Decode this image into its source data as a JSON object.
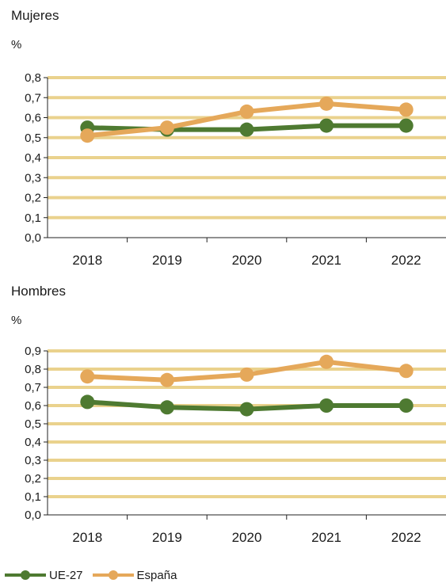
{
  "colors": {
    "ue27": "#4e7a31",
    "espana": "#e5a85a",
    "grid": "#ead28d"
  },
  "chart_data": [
    {
      "type": "line",
      "title": "Mujeres",
      "ylabel": "%",
      "categories": [
        "2018",
        "2019",
        "2020",
        "2021",
        "2022"
      ],
      "ylim": [
        0,
        0.8
      ],
      "yticks": [
        "0,0",
        "0,1",
        "0,2",
        "0,3",
        "0,4",
        "0,5",
        "0,6",
        "0,7",
        "0,8"
      ],
      "grid": true,
      "series": [
        {
          "name": "UE-27",
          "values": [
            0.55,
            0.54,
            0.54,
            0.56,
            0.56
          ]
        },
        {
          "name": "España",
          "values": [
            0.51,
            0.55,
            0.63,
            0.67,
            0.64
          ]
        }
      ]
    },
    {
      "type": "line",
      "title": "Hombres",
      "ylabel": "%",
      "categories": [
        "2018",
        "2019",
        "2020",
        "2021",
        "2022"
      ],
      "ylim": [
        0,
        0.9
      ],
      "yticks": [
        "0,0",
        "0,1",
        "0,2",
        "0,3",
        "0,4",
        "0,5",
        "0,6",
        "0,7",
        "0,8",
        "0,9"
      ],
      "grid": true,
      "series": [
        {
          "name": "UE-27",
          "values": [
            0.62,
            0.59,
            0.58,
            0.6,
            0.6
          ]
        },
        {
          "name": "España",
          "values": [
            0.76,
            0.74,
            0.77,
            0.84,
            0.79
          ]
        }
      ]
    }
  ],
  "legend": {
    "position": "bottom-left",
    "items": [
      "UE-27",
      "España"
    ]
  }
}
